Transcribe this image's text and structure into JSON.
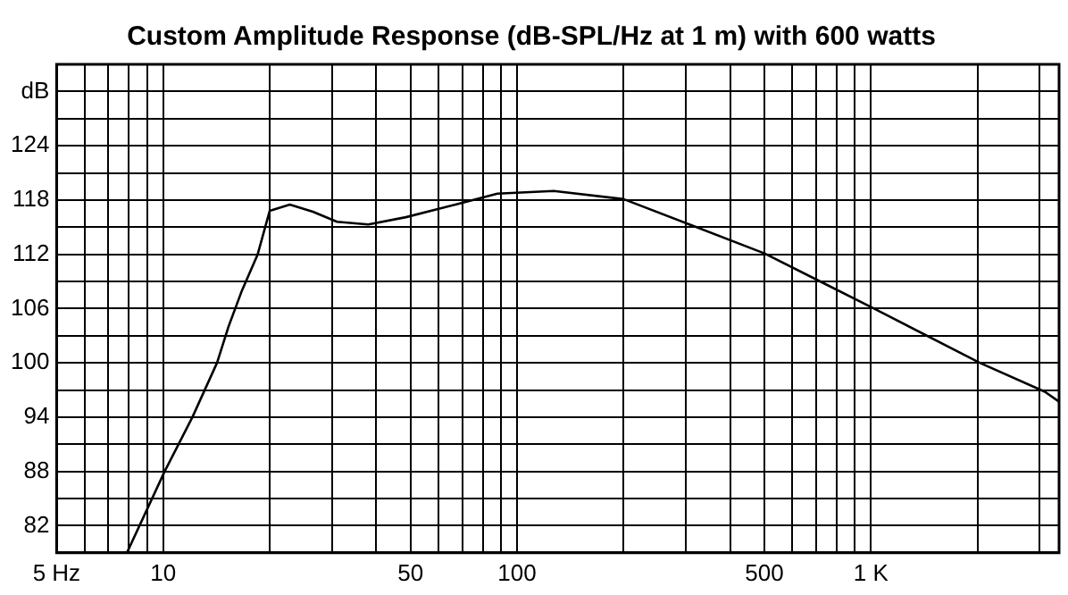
{
  "chart_data": {
    "type": "line",
    "title": "Custom Amplitude Response (dB-SPL/Hz at 1 m) with 600 watts",
    "x": [
      7.9,
      10.1,
      12.1,
      14.2,
      15.3,
      16.7,
      18.5,
      20,
      22.8,
      26.5,
      31,
      38,
      48.5,
      67,
      88,
      127,
      200,
      307,
      500,
      710,
      1020,
      2030,
      3100,
      3400
    ],
    "series": [
      {
        "color": "#000000",
        "values": [
          79,
          88,
          94,
          100,
          104,
          108,
          112,
          116.8,
          117.5,
          116.7,
          115.6,
          115.3,
          116.1,
          117.5,
          118.7,
          119,
          118.1,
          115.3,
          112.1,
          109.1,
          106,
          100,
          96.8,
          95.7
        ]
      }
    ],
    "log": "x",
    "xlim": [
      5,
      3400
    ],
    "xticks": [
      {
        "value": 5,
        "label": "5 Hz"
      },
      {
        "value": 6,
        "label": null
      },
      {
        "value": 7,
        "label": null
      },
      {
        "value": 8,
        "label": null
      },
      {
        "value": 9,
        "label": null
      },
      10,
      {
        "value": 20,
        "label": null
      },
      {
        "value": 30,
        "label": null
      },
      {
        "value": 40,
        "label": null
      },
      50,
      {
        "value": 60,
        "label": null
      },
      {
        "value": 70,
        "label": null
      },
      {
        "value": 80,
        "label": null
      },
      {
        "value": 90,
        "label": null
      },
      100,
      {
        "value": 200,
        "label": null
      },
      {
        "value": 300,
        "label": null
      },
      {
        "value": 400,
        "label": null
      },
      500,
      {
        "value": 600,
        "label": null
      },
      {
        "value": 700,
        "label": null
      },
      {
        "value": 800,
        "label": null
      },
      {
        "value": 900,
        "label": null
      },
      {
        "value": 1000,
        "label": "1 K"
      },
      {
        "value": 2000,
        "label": null
      },
      {
        "value": 3000,
        "label": null
      }
    ],
    "ylim": [
      79,
      133
    ],
    "yticks": [
      {
        "value": 79,
        "label": null
      },
      82,
      {
        "value": 85,
        "label": null
      },
      88,
      {
        "value": 91,
        "label": null
      },
      94,
      {
        "value": 97,
        "label": null
      },
      100,
      {
        "value": 103,
        "label": null
      },
      106,
      {
        "value": 109,
        "label": null
      },
      112,
      {
        "value": 115,
        "label": null
      },
      118,
      {
        "value": 121,
        "label": null
      },
      124,
      {
        "value": 127,
        "label": null
      },
      {
        "value": 130,
        "label": "dB"
      },
      {
        "value": 133,
        "label": null
      }
    ],
    "grid": true,
    "legend": false,
    "marker": "none",
    "line_style": "solid"
  }
}
